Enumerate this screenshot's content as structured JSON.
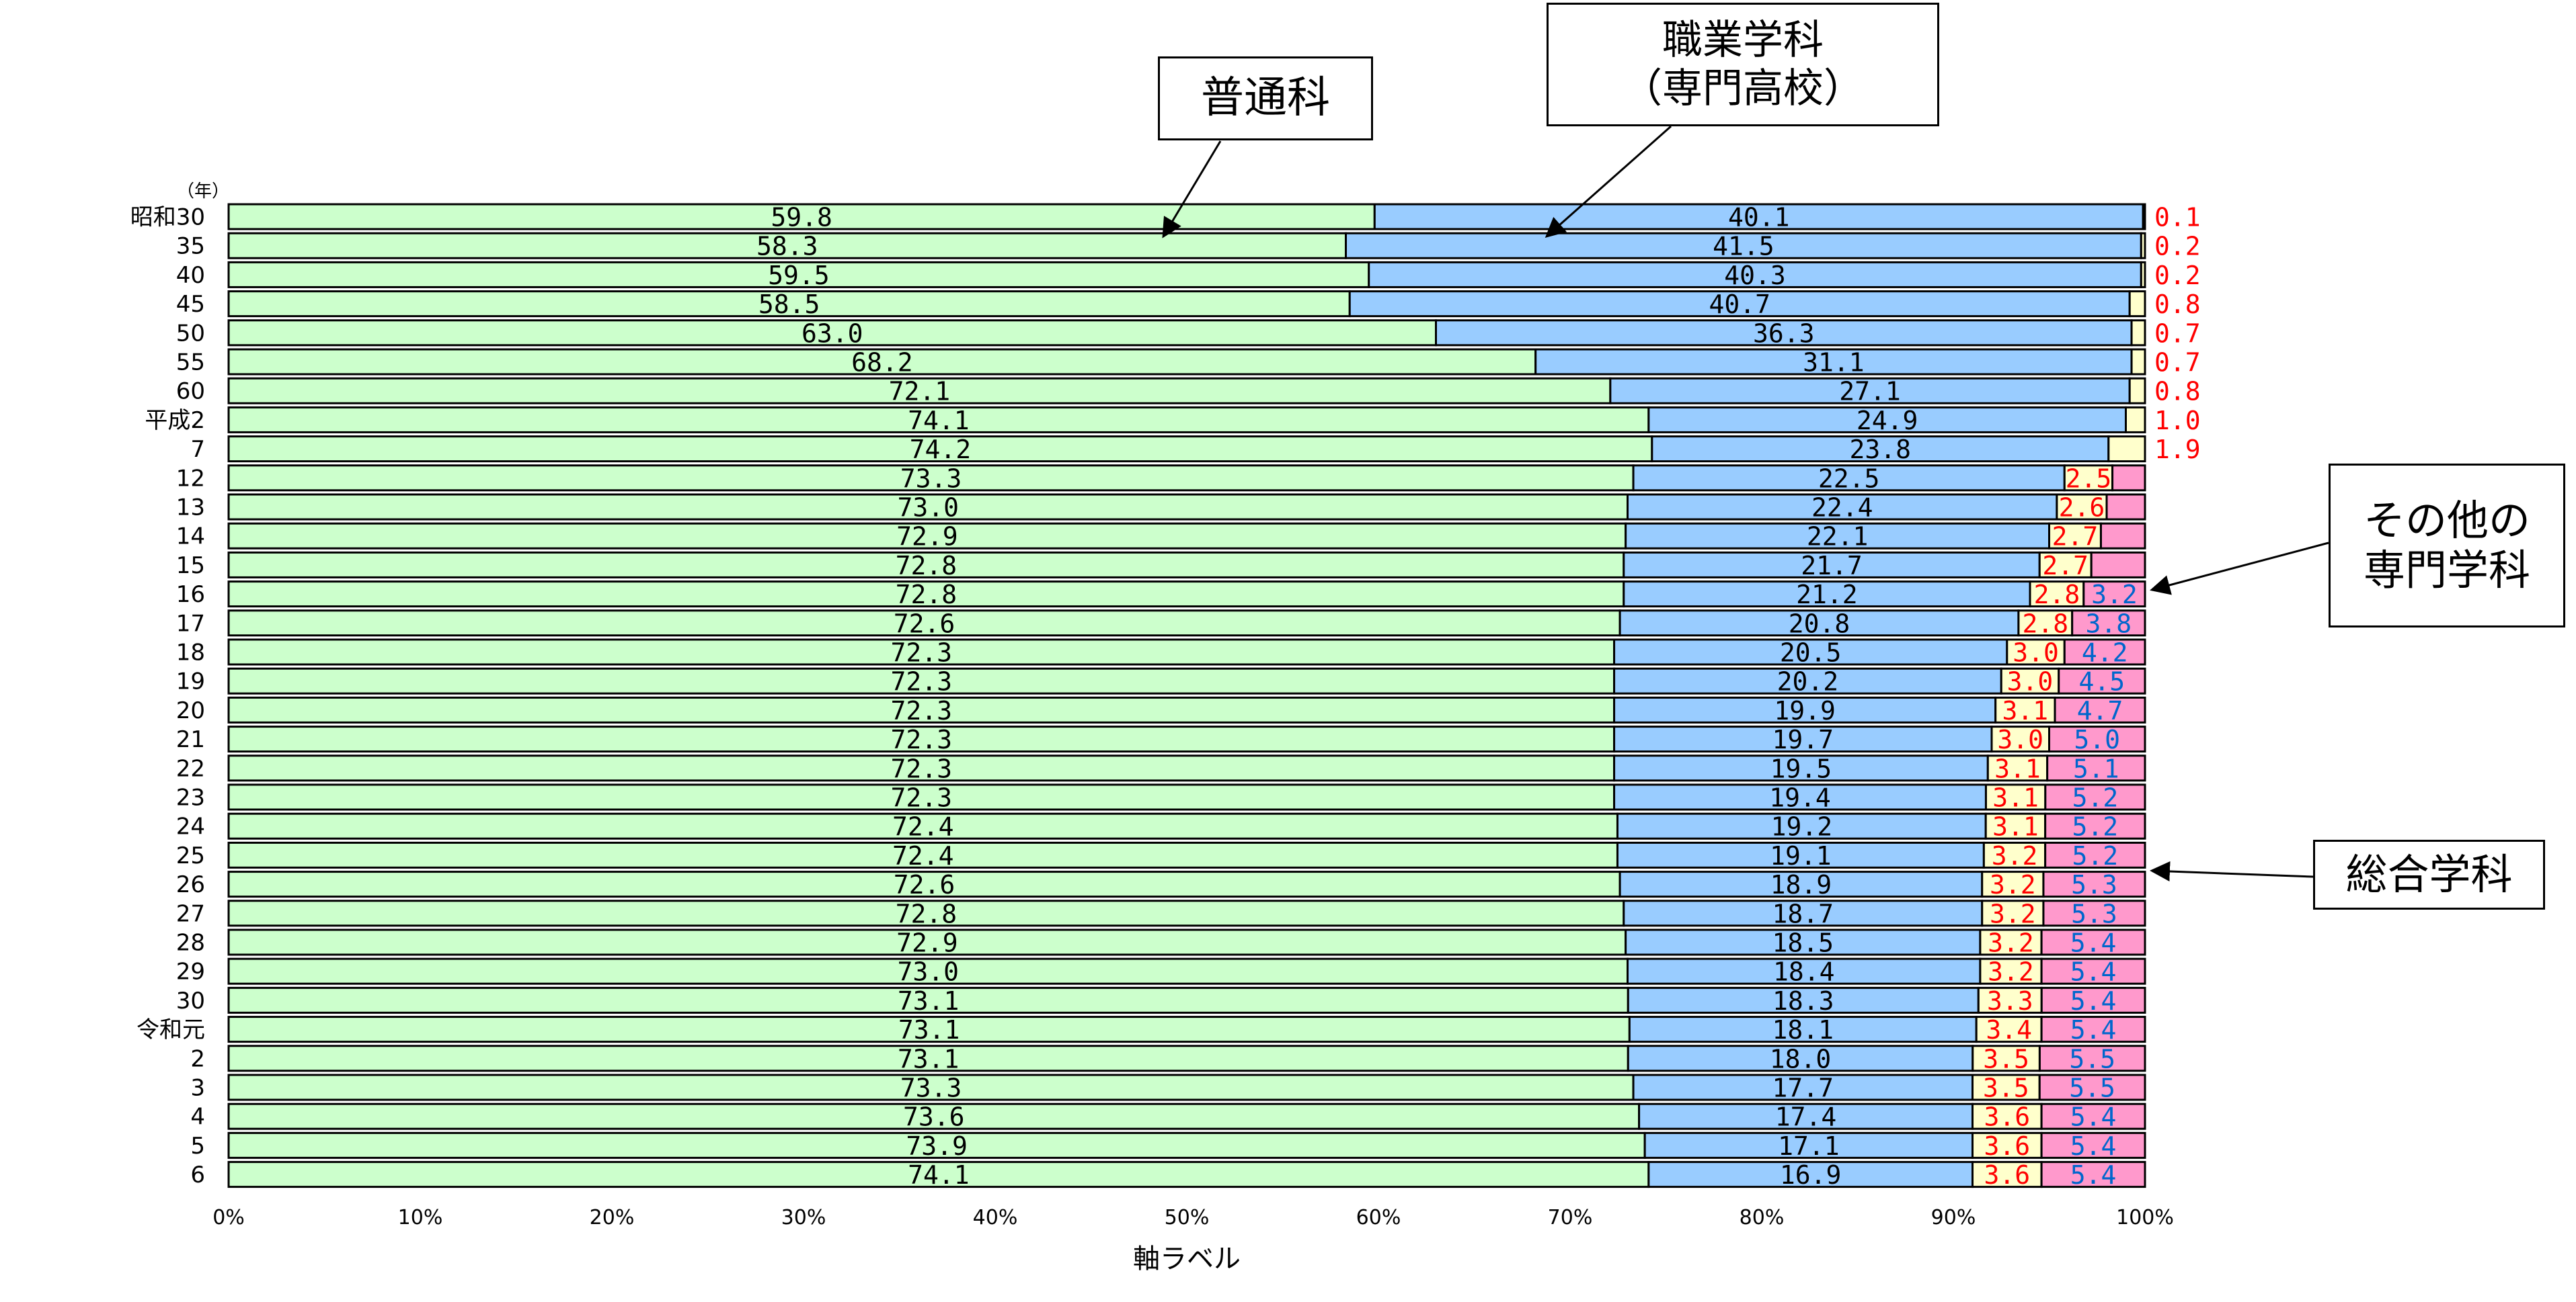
{
  "chart_data": {
    "type": "bar",
    "orientation": "horizontal",
    "stacked": "percent",
    "year_unit": "（年）",
    "xlabel": "軸ラベル",
    "x_ticks": [
      "0%",
      "10%",
      "20%",
      "30%",
      "40%",
      "50%",
      "60%",
      "70%",
      "80%",
      "90%",
      "100%"
    ],
    "xlim": [
      0,
      100
    ],
    "categories": [
      "昭和30",
      "35",
      "40",
      "45",
      "50",
      "55",
      "60",
      "平成2",
      "7",
      "12",
      "13",
      "14",
      "15",
      "16",
      "17",
      "18",
      "19",
      "20",
      "21",
      "22",
      "23",
      "24",
      "25",
      "26",
      "27",
      "28",
      "29",
      "30",
      "令和元",
      "2",
      "3",
      "4",
      "5",
      "6"
    ],
    "series": [
      {
        "name": "普通科",
        "color": "#ccffcc",
        "label_color": "#000000",
        "values": [
          59.8,
          58.3,
          59.5,
          58.5,
          63.0,
          68.2,
          72.1,
          74.1,
          74.2,
          73.3,
          73.0,
          72.9,
          72.8,
          72.8,
          72.6,
          72.3,
          72.3,
          72.3,
          72.3,
          72.3,
          72.3,
          72.4,
          72.4,
          72.6,
          72.8,
          72.9,
          73.0,
          73.1,
          73.1,
          73.1,
          73.3,
          73.6,
          73.9,
          74.1
        ]
      },
      {
        "name": "職業学科（専門高校）",
        "color": "#99ccff",
        "label_color": "#000000",
        "values": [
          40.1,
          41.5,
          40.3,
          40.7,
          36.3,
          31.1,
          27.1,
          24.9,
          23.8,
          22.5,
          22.4,
          22.1,
          21.7,
          21.2,
          20.8,
          20.5,
          20.2,
          19.9,
          19.7,
          19.5,
          19.4,
          19.2,
          19.1,
          18.9,
          18.7,
          18.5,
          18.4,
          18.3,
          18.1,
          18.0,
          17.7,
          17.4,
          17.1,
          16.9
        ]
      },
      {
        "name": "その他の専門学科",
        "color": "#ffffcc",
        "label_color": "#ff0000",
        "values": [
          0.1,
          0.2,
          0.2,
          0.8,
          0.7,
          0.7,
          0.8,
          1.0,
          1.9,
          2.5,
          2.6,
          2.7,
          2.7,
          2.8,
          2.8,
          3.0,
          3.0,
          3.1,
          3.0,
          3.1,
          3.1,
          3.1,
          3.2,
          3.2,
          3.2,
          3.2,
          3.2,
          3.3,
          3.4,
          3.5,
          3.5,
          3.6,
          3.6,
          3.6
        ]
      },
      {
        "name": "総合学科",
        "color": "#ff99cc",
        "label_color": "#0066cc",
        "values": [
          0,
          0,
          0,
          0,
          0,
          0,
          0,
          0,
          0,
          1.7,
          2.0,
          2.3,
          2.8,
          3.2,
          3.8,
          4.2,
          4.5,
          4.7,
          5.0,
          5.1,
          5.2,
          5.2,
          5.2,
          5.3,
          5.3,
          5.4,
          5.4,
          5.4,
          5.4,
          5.5,
          5.5,
          5.4,
          5.4,
          5.4
        ]
      }
    ],
    "other_labels": [
      "0.1",
      "0.2",
      "0.2",
      "0.8",
      "0.7",
      "0.7",
      "0.8",
      "1.0",
      "1.9",
      "2.5",
      "2.6",
      "2.7",
      "2.7",
      "2.8",
      "2.8",
      "3.0",
      "3.0",
      "3.1",
      "3.0",
      "3.1",
      "3.1",
      "3.1",
      "3.2",
      "3.2",
      "3.2",
      "3.2",
      "3.2",
      "3.3",
      "3.4",
      "3.5",
      "3.5",
      "3.6",
      "3.6",
      "3.6"
    ],
    "integrated_labels": [
      "",
      "",
      "",
      "",
      "",
      "",
      "",
      "",
      "",
      "",
      "",
      "",
      "",
      "3.2",
      "3.8",
      "4.2",
      "4.5",
      "4.7",
      "5.0",
      "5.1",
      "5.2",
      "5.2",
      "5.2",
      "5.3",
      "5.3",
      "5.4",
      "5.4",
      "5.4",
      "5.4",
      "5.5",
      "5.5",
      "5.4",
      "5.4",
      "5.4"
    ],
    "grid": false,
    "legend": "callouts"
  },
  "callouts": {
    "general": "普通科",
    "vocational": "職業学科\n（専門高校）",
    "other": "その他の\n専門学科",
    "integrated": "総合学科"
  }
}
